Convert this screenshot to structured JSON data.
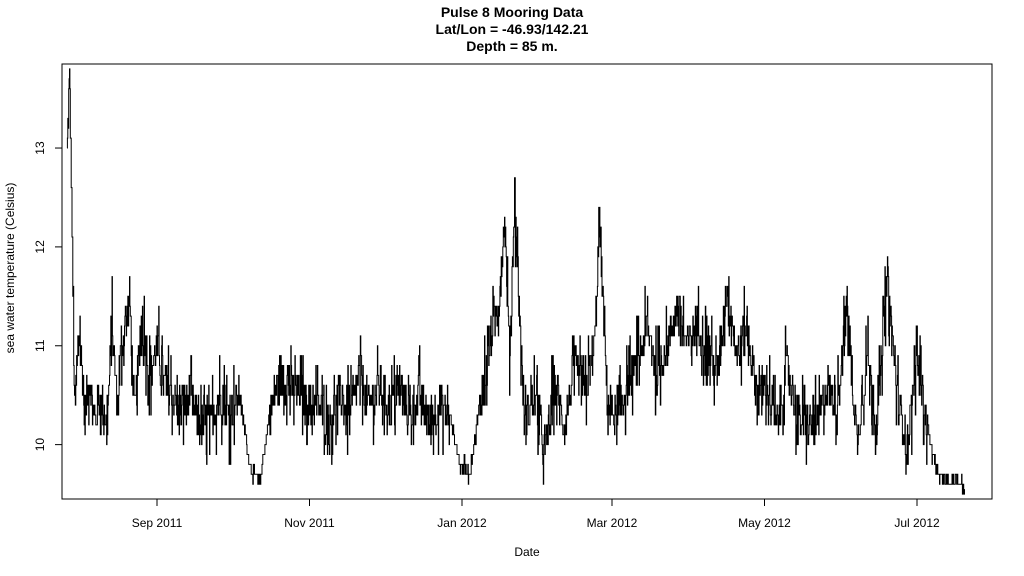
{
  "chart_data": {
    "type": "line",
    "title": "Pulse 8 Mooring Data",
    "subtitle_lines": [
      "Lat/Lon = -46.93/142.21",
      "Depth = 85 m."
    ],
    "xlabel": "Date",
    "ylabel": "sea water temperature (Celsius)",
    "xlim": [
      "2011-07-25",
      "2012-07-31"
    ],
    "ylim": [
      9.45,
      13.85
    ],
    "x_ticks": [
      {
        "date": "2011-09-01",
        "label": "Sep 2011"
      },
      {
        "date": "2011-11-01",
        "label": "Nov 2011"
      },
      {
        "date": "2012-01-01",
        "label": "Jan 2012"
      },
      {
        "date": "2012-03-01",
        "label": "Mar 2012"
      },
      {
        "date": "2012-05-01",
        "label": "May 2012"
      },
      {
        "date": "2012-07-01",
        "label": "Jul 2012"
      }
    ],
    "y_ticks": [
      10,
      11,
      12,
      13
    ],
    "grid": false,
    "legend": "none",
    "series": [
      {
        "color": "#000000",
        "x": [
          "2011-07-27",
          "2011-07-28",
          "2011-07-29",
          "2011-07-30",
          "2011-08-01",
          "2011-08-03",
          "2011-08-05",
          "2011-08-07",
          "2011-08-09",
          "2011-08-12",
          "2011-08-14",
          "2011-08-16",
          "2011-08-18",
          "2011-08-21",
          "2011-08-23",
          "2011-08-26",
          "2011-08-29",
          "2011-09-01",
          "2011-09-04",
          "2011-09-07",
          "2011-09-10",
          "2011-09-14",
          "2011-09-18",
          "2011-09-22",
          "2011-09-26",
          "2011-09-30",
          "2011-10-04",
          "2011-10-08",
          "2011-10-12",
          "2011-10-16",
          "2011-10-20",
          "2011-10-24",
          "2011-10-28",
          "2011-11-01",
          "2011-11-05",
          "2011-11-09",
          "2011-11-13",
          "2011-11-17",
          "2011-11-21",
          "2011-11-25",
          "2011-11-29",
          "2011-12-03",
          "2011-12-07",
          "2011-12-11",
          "2011-12-15",
          "2011-12-19",
          "2011-12-23",
          "2011-12-27",
          "2011-12-31",
          "2012-01-04",
          "2012-01-08",
          "2012-01-12",
          "2012-01-16",
          "2012-01-18",
          "2012-01-20",
          "2012-01-22",
          "2012-01-26",
          "2012-01-30",
          "2012-02-03",
          "2012-02-07",
          "2012-02-11",
          "2012-02-15",
          "2012-02-19",
          "2012-02-23",
          "2012-02-25",
          "2012-02-28",
          "2012-03-03",
          "2012-03-07",
          "2012-03-11",
          "2012-03-15",
          "2012-03-19",
          "2012-03-23",
          "2012-03-27",
          "2012-03-31",
          "2012-04-04",
          "2012-04-08",
          "2012-04-12",
          "2012-04-16",
          "2012-04-20",
          "2012-04-24",
          "2012-04-28",
          "2012-05-02",
          "2012-05-06",
          "2012-05-10",
          "2012-05-14",
          "2012-05-18",
          "2012-05-22",
          "2012-05-26",
          "2012-05-30",
          "2012-06-03",
          "2012-06-07",
          "2012-06-11",
          "2012-06-15",
          "2012-06-19",
          "2012-06-23",
          "2012-06-27",
          "2012-07-01",
          "2012-07-05",
          "2012-07-09",
          "2012-07-13",
          "2012-07-16",
          "2012-07-20"
        ],
        "y": [
          12.9,
          13.75,
          12.2,
          10.3,
          11.2,
          10.3,
          10.7,
          10.2,
          10.5,
          10.2,
          11.2,
          10.4,
          11.0,
          11.5,
          10.3,
          11.3,
          10.7,
          11.0,
          10.6,
          10.5,
          10.3,
          10.5,
          10.2,
          10.2,
          10.5,
          10.3,
          10.5,
          9.8,
          9.6,
          10.3,
          10.7,
          10.6,
          10.5,
          10.4,
          10.4,
          10.2,
          10.5,
          10.3,
          10.7,
          10.4,
          10.6,
          10.4,
          10.6,
          10.3,
          10.5,
          10.2,
          10.4,
          10.3,
          9.8,
          9.7,
          10.4,
          11.0,
          11.5,
          12.3,
          10.9,
          12.5,
          10.2,
          10.5,
          9.9,
          10.6,
          10.2,
          10.8,
          10.5,
          11.0,
          12.25,
          10.5,
          10.2,
          10.6,
          10.8,
          11.2,
          10.7,
          11.0,
          11.4,
          11.0,
          11.2,
          11.0,
          10.7,
          11.6,
          10.9,
          11.2,
          10.5,
          10.6,
          10.2,
          10.8,
          10.3,
          10.2,
          10.2,
          10.6,
          10.4,
          11.4,
          10.0,
          10.9,
          10.2,
          11.7,
          10.5,
          10.0,
          10.9,
          10.2,
          9.7,
          9.6,
          9.65,
          9.55
        ]
      }
    ]
  }
}
